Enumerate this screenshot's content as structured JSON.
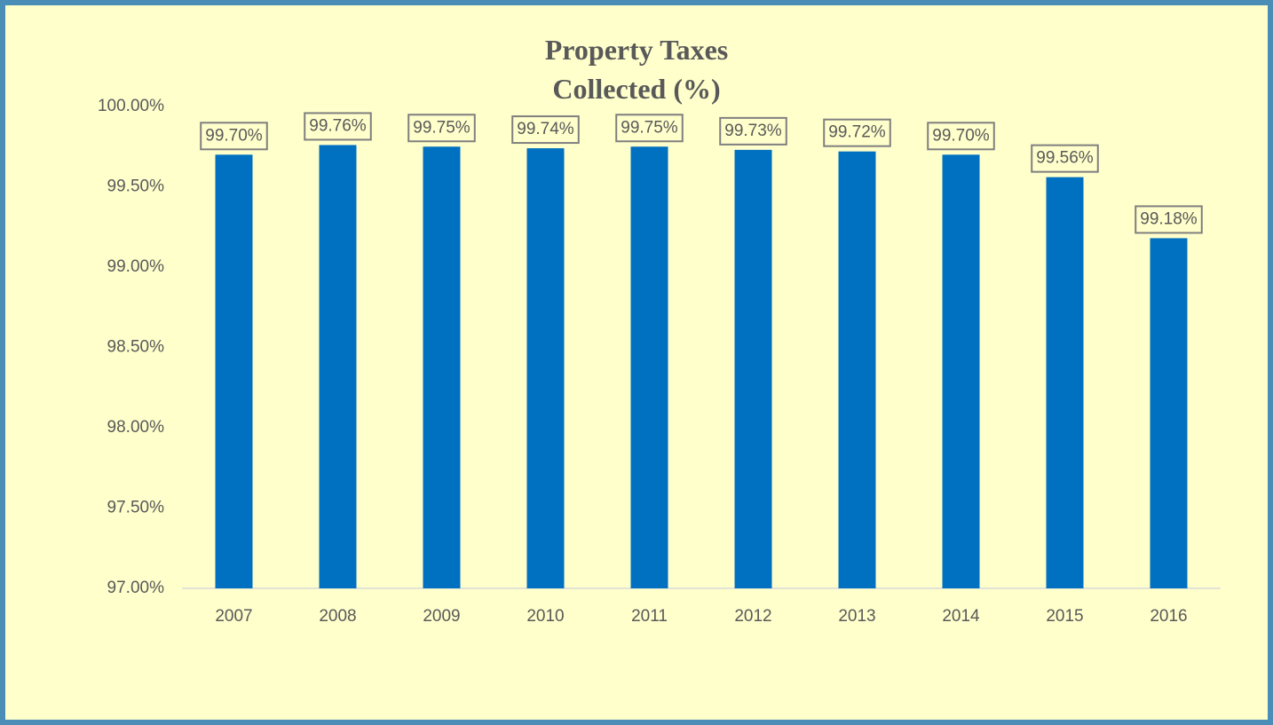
{
  "chart_data": {
    "type": "bar",
    "title": "Property Taxes Collected (%)",
    "categories": [
      "2007",
      "2008",
      "2009",
      "2010",
      "2011",
      "2012",
      "2013",
      "2014",
      "2015",
      "2016"
    ],
    "values": [
      99.7,
      99.76,
      99.75,
      99.74,
      99.75,
      99.73,
      99.72,
      99.7,
      99.56,
      99.18
    ],
    "value_labels": [
      "99.70%",
      "99.76%",
      "99.75%",
      "99.74%",
      "99.75%",
      "99.73%",
      "99.72%",
      "99.70%",
      "99.56%",
      "99.18%"
    ],
    "color": "#0070c0",
    "ylim": [
      97,
      100
    ],
    "yticks": [
      {
        "value": 97,
        "label": "97.00%"
      },
      {
        "value": 97.5,
        "label": "97.50%"
      },
      {
        "value": 98,
        "label": "98.00%"
      },
      {
        "value": 98.5,
        "label": "98.50%"
      },
      {
        "value": 99,
        "label": "99.00%"
      },
      {
        "value": 99.5,
        "label": "99.50%"
      },
      {
        "value": 100,
        "label": "100.00%"
      }
    ],
    "grid": false
  }
}
